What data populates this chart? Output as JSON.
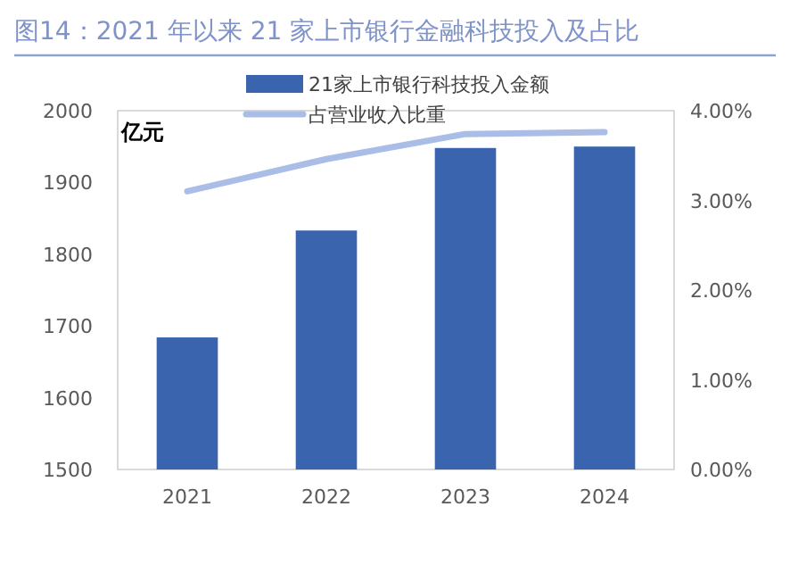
{
  "chart_data": {
    "type": "bar",
    "title": "图14：2021 年以来 21 家上市银行金融科技投入及占比",
    "ylabel": "亿元",
    "categories": [
      "2021",
      "2022",
      "2023",
      "2024"
    ],
    "series": [
      {
        "name": "21家上市银行科技投入金额",
        "color": "#3a64ad",
        "values": [
          1684,
          1833,
          1948,
          1950
        ]
      },
      {
        "name": "占营业收入比重",
        "type": "line",
        "axis": "y2",
        "color": "#a9bde6",
        "values": [
          3.1,
          3.46,
          3.74,
          3.76
        ]
      }
    ],
    "ylim": [
      1500,
      2000
    ],
    "yticks": [
      1500,
      1600,
      1700,
      1800,
      1900,
      2000
    ],
    "y2lim": [
      0,
      4
    ],
    "y2ticks": [
      {
        "value": 0,
        "label": "0.00%"
      },
      {
        "value": 1,
        "label": "1.00%"
      },
      {
        "value": 2,
        "label": "2.00%"
      },
      {
        "value": 3,
        "label": "3.00%"
      },
      {
        "value": 4,
        "label": "4.00%"
      }
    ],
    "grid": false,
    "legend": "top"
  }
}
